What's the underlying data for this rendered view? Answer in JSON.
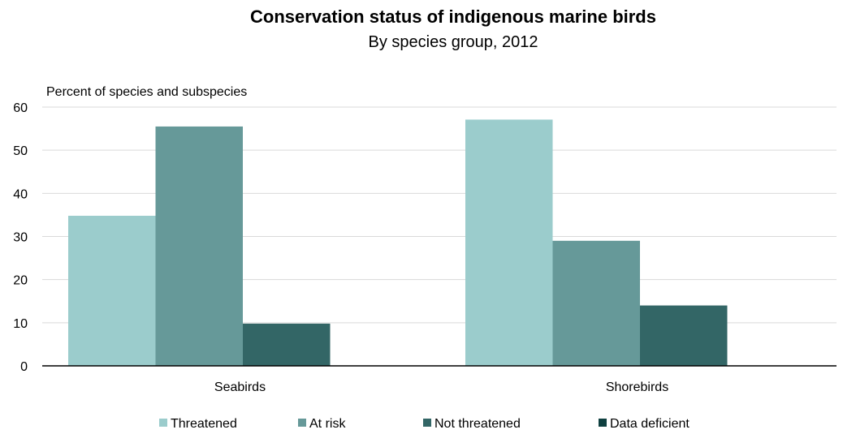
{
  "chart_data": {
    "type": "bar",
    "title": "Conservation status of indigenous marine birds",
    "subtitle": "By species group, 2012",
    "ylabel": "Percent of species and subspecies",
    "xlabel": "",
    "ylim": [
      0,
      60
    ],
    "yticks": [
      0,
      10,
      20,
      30,
      40,
      50,
      60
    ],
    "grid": true,
    "legend_position": "bottom",
    "categories": [
      "Seabirds",
      "Shorebirds"
    ],
    "series": [
      {
        "name": "Threatened",
        "color": "#9bcccc",
        "values": [
          34.8,
          57.1
        ]
      },
      {
        "name": "At risk",
        "color": "#669999",
        "values": [
          55.5,
          29
        ]
      },
      {
        "name": "Not threatened",
        "color": "#336666",
        "values": [
          9.8,
          14
        ]
      },
      {
        "name": "Data deficient",
        "color": "#0f4040",
        "values": [
          0,
          0
        ]
      }
    ]
  }
}
